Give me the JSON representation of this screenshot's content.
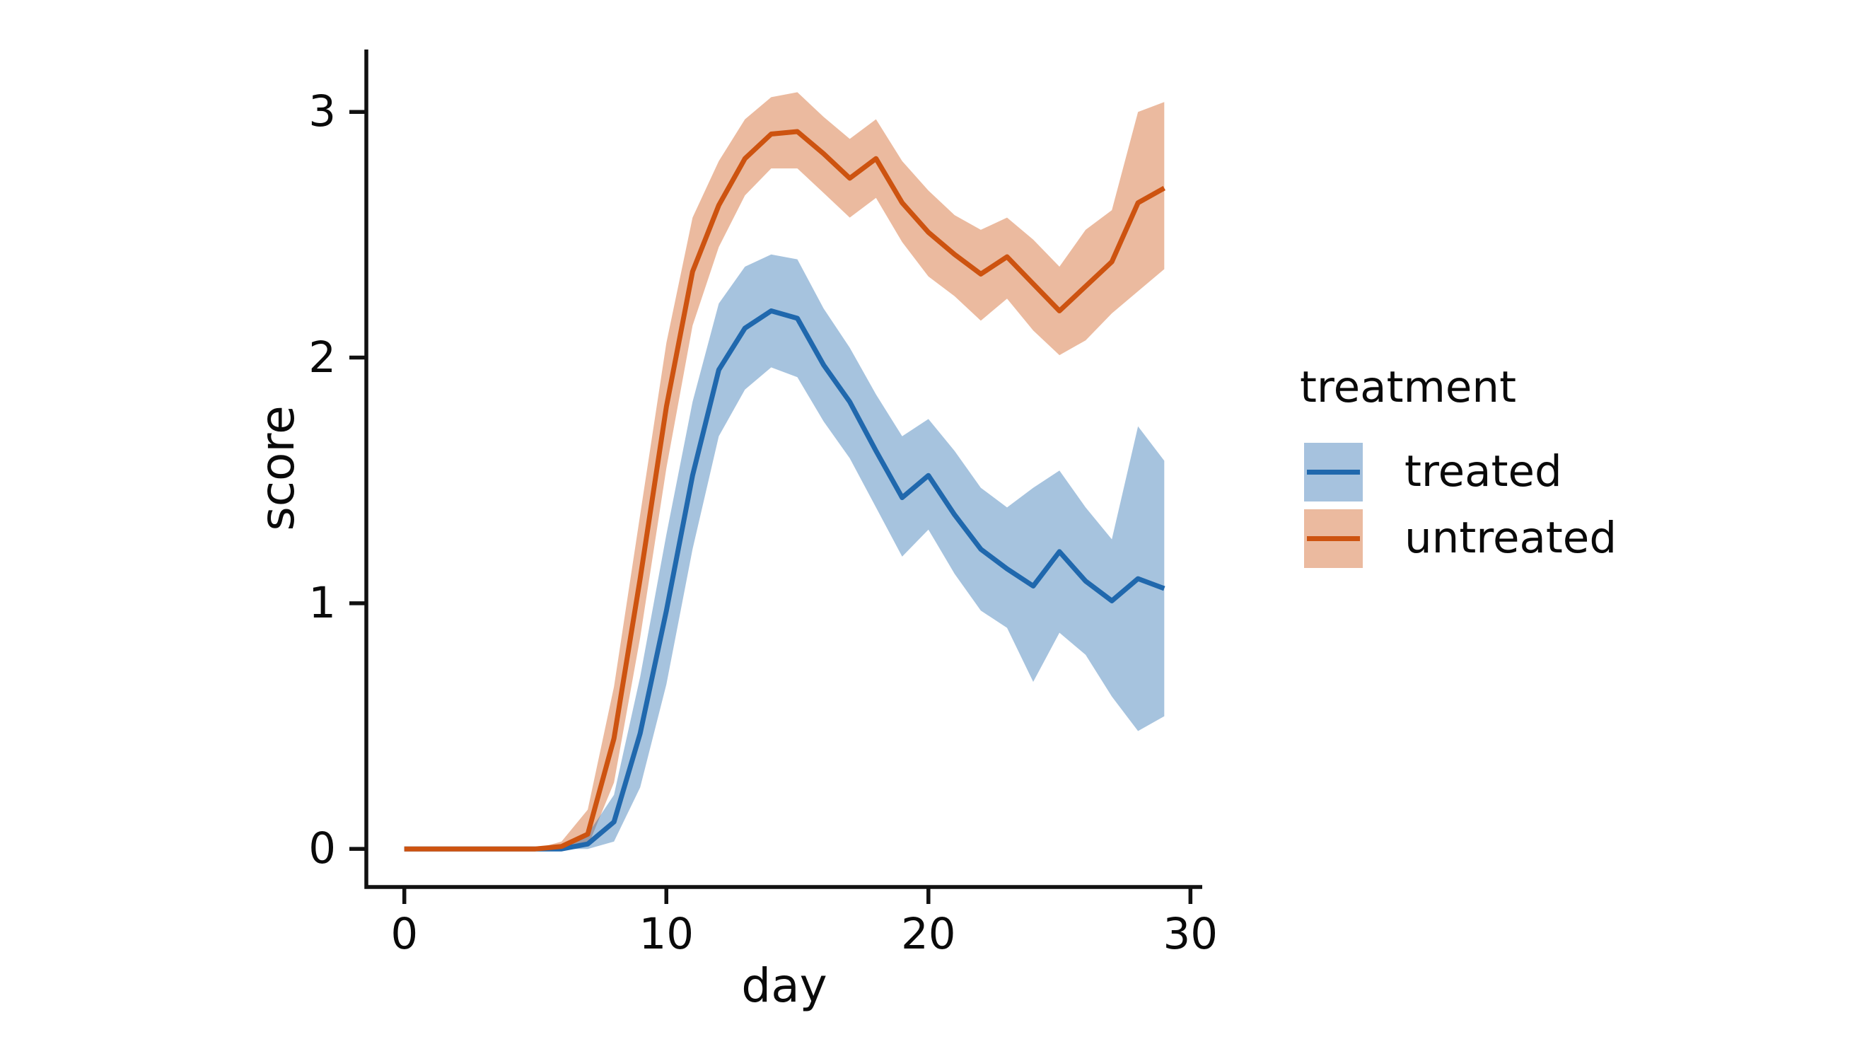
{
  "chart_data": {
    "type": "line",
    "title": "",
    "xlabel": "day",
    "ylabel": "score",
    "x_ticks": [
      0,
      10,
      20,
      30
    ],
    "x_tick_labels": [
      "0",
      "10",
      "20",
      "30"
    ],
    "y_ticks": [
      0,
      1,
      2,
      3
    ],
    "y_tick_labels": [
      "0",
      "1",
      "2",
      "3"
    ],
    "xlim": [
      -1.45,
      30.45
    ],
    "ylim": [
      -0.155,
      3.254
    ],
    "grid": false,
    "error_band": "confidence interval, mean line with shaded band",
    "x": [
      0,
      1,
      2,
      3,
      4,
      5,
      6,
      7,
      8,
      9,
      10,
      11,
      12,
      13,
      14,
      15,
      16,
      17,
      18,
      19,
      20,
      21,
      22,
      23,
      24,
      25,
      26,
      27,
      28,
      29
    ],
    "series": [
      {
        "name": "treated",
        "line_color": "#2068ad",
        "band_color": "#a6c2de",
        "mean": [
          0,
          0,
          0,
          0,
          0,
          0,
          0,
          0.02,
          0.11,
          0.47,
          0.97,
          1.52,
          1.95,
          2.12,
          2.19,
          2.16,
          1.97,
          1.82,
          1.62,
          1.43,
          1.52,
          1.36,
          1.22,
          1.14,
          1.07,
          1.21,
          1.09,
          1.01,
          1.1,
          1.06
        ],
        "upper": [
          0,
          0,
          0,
          0,
          0,
          0,
          0,
          0.06,
          0.22,
          0.7,
          1.28,
          1.82,
          2.22,
          2.37,
          2.42,
          2.4,
          2.2,
          2.04,
          1.85,
          1.68,
          1.75,
          1.62,
          1.47,
          1.39,
          1.47,
          1.54,
          1.39,
          1.26,
          1.72,
          1.58
        ],
        "lower": [
          0,
          0,
          0,
          0,
          0,
          0,
          0,
          0.0,
          0.03,
          0.25,
          0.67,
          1.22,
          1.68,
          1.87,
          1.96,
          1.92,
          1.74,
          1.59,
          1.39,
          1.19,
          1.3,
          1.12,
          0.97,
          0.9,
          0.68,
          0.88,
          0.79,
          0.62,
          0.48,
          0.54
        ]
      },
      {
        "name": "untreated",
        "line_color": "#cd5310",
        "band_color": "#ebba9f",
        "mean": [
          0,
          0,
          0,
          0,
          0,
          0,
          0.01,
          0.06,
          0.45,
          1.1,
          1.8,
          2.35,
          2.62,
          2.81,
          2.91,
          2.92,
          2.83,
          2.73,
          2.81,
          2.63,
          2.51,
          2.42,
          2.34,
          2.41,
          2.3,
          2.19,
          2.29,
          2.39,
          2.63,
          2.69
        ],
        "upper": [
          0,
          0,
          0,
          0,
          0,
          0,
          0.03,
          0.16,
          0.66,
          1.36,
          2.06,
          2.57,
          2.8,
          2.97,
          3.06,
          3.08,
          2.98,
          2.89,
          2.97,
          2.8,
          2.68,
          2.58,
          2.52,
          2.57,
          2.48,
          2.37,
          2.52,
          2.6,
          3.0,
          3.04
        ],
        "lower": [
          0,
          0,
          0,
          0,
          0,
          0,
          0.0,
          0.01,
          0.27,
          0.86,
          1.55,
          2.13,
          2.45,
          2.66,
          2.77,
          2.77,
          2.67,
          2.57,
          2.65,
          2.47,
          2.33,
          2.25,
          2.15,
          2.24,
          2.11,
          2.01,
          2.07,
          2.18,
          2.27,
          2.36
        ]
      }
    ],
    "legend": {
      "title": "treatment",
      "position": "right",
      "items": [
        {
          "label": "treated"
        },
        {
          "label": "untreated"
        }
      ]
    },
    "axis_color": "#111111",
    "text_color": "#0a0a0a",
    "background_color": "#ffffff"
  }
}
